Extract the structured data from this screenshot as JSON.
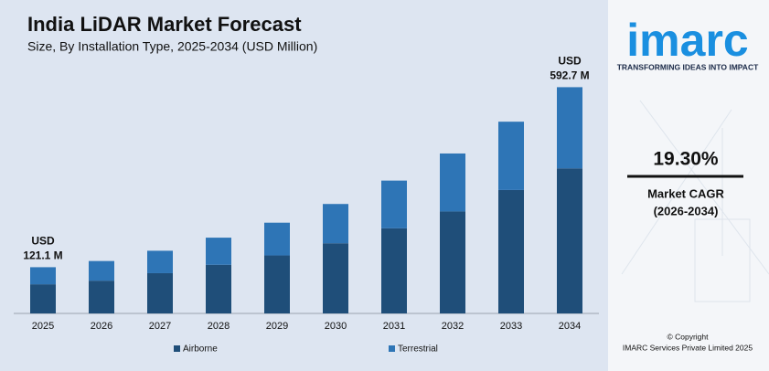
{
  "chart_data": {
    "type": "stacked_bar",
    "title": "India LiDAR Market Forecast",
    "subtitle": "Size, By Installation Type, 2025-2034 (USD Million)",
    "categories": [
      "2025",
      "2026",
      "2027",
      "2028",
      "2029",
      "2030",
      "2031",
      "2032",
      "2033",
      "2034"
    ],
    "series": [
      {
        "name": "Airborne",
        "color": "#1f4e79",
        "values": [
          76.3,
          85.8,
          105.4,
          127.4,
          151.9,
          183.8,
          223.0,
          267.1,
          323.4,
          380.0
        ]
      },
      {
        "name": "Terrestrial",
        "color": "#2e75b6",
        "values": [
          44.8,
          51.5,
          58.8,
          71.1,
          85.8,
          102.9,
          125.0,
          151.9,
          178.9,
          212.7
        ]
      }
    ],
    "totals": [
      121.1,
      null,
      null,
      null,
      null,
      null,
      null,
      null,
      null,
      592.7
    ],
    "total_labels": [
      [
        "USD",
        "121.1 M"
      ],
      null,
      null,
      null,
      null,
      null,
      null,
      null,
      null,
      [
        "USD",
        "592.7 M"
      ]
    ],
    "ylim": [
      0,
      620
    ],
    "legend": "bottom"
  },
  "sidebar": {
    "logo": "imarc",
    "tagline": "TRANSFORMING IDEAS INTO IMPACT",
    "cagr": "19.30%",
    "cagr_label": "Market CAGR",
    "cagr_period": "(2026-2034)",
    "copyright": "© Copyright",
    "company": "IMARC Services Private Limited 2025"
  }
}
